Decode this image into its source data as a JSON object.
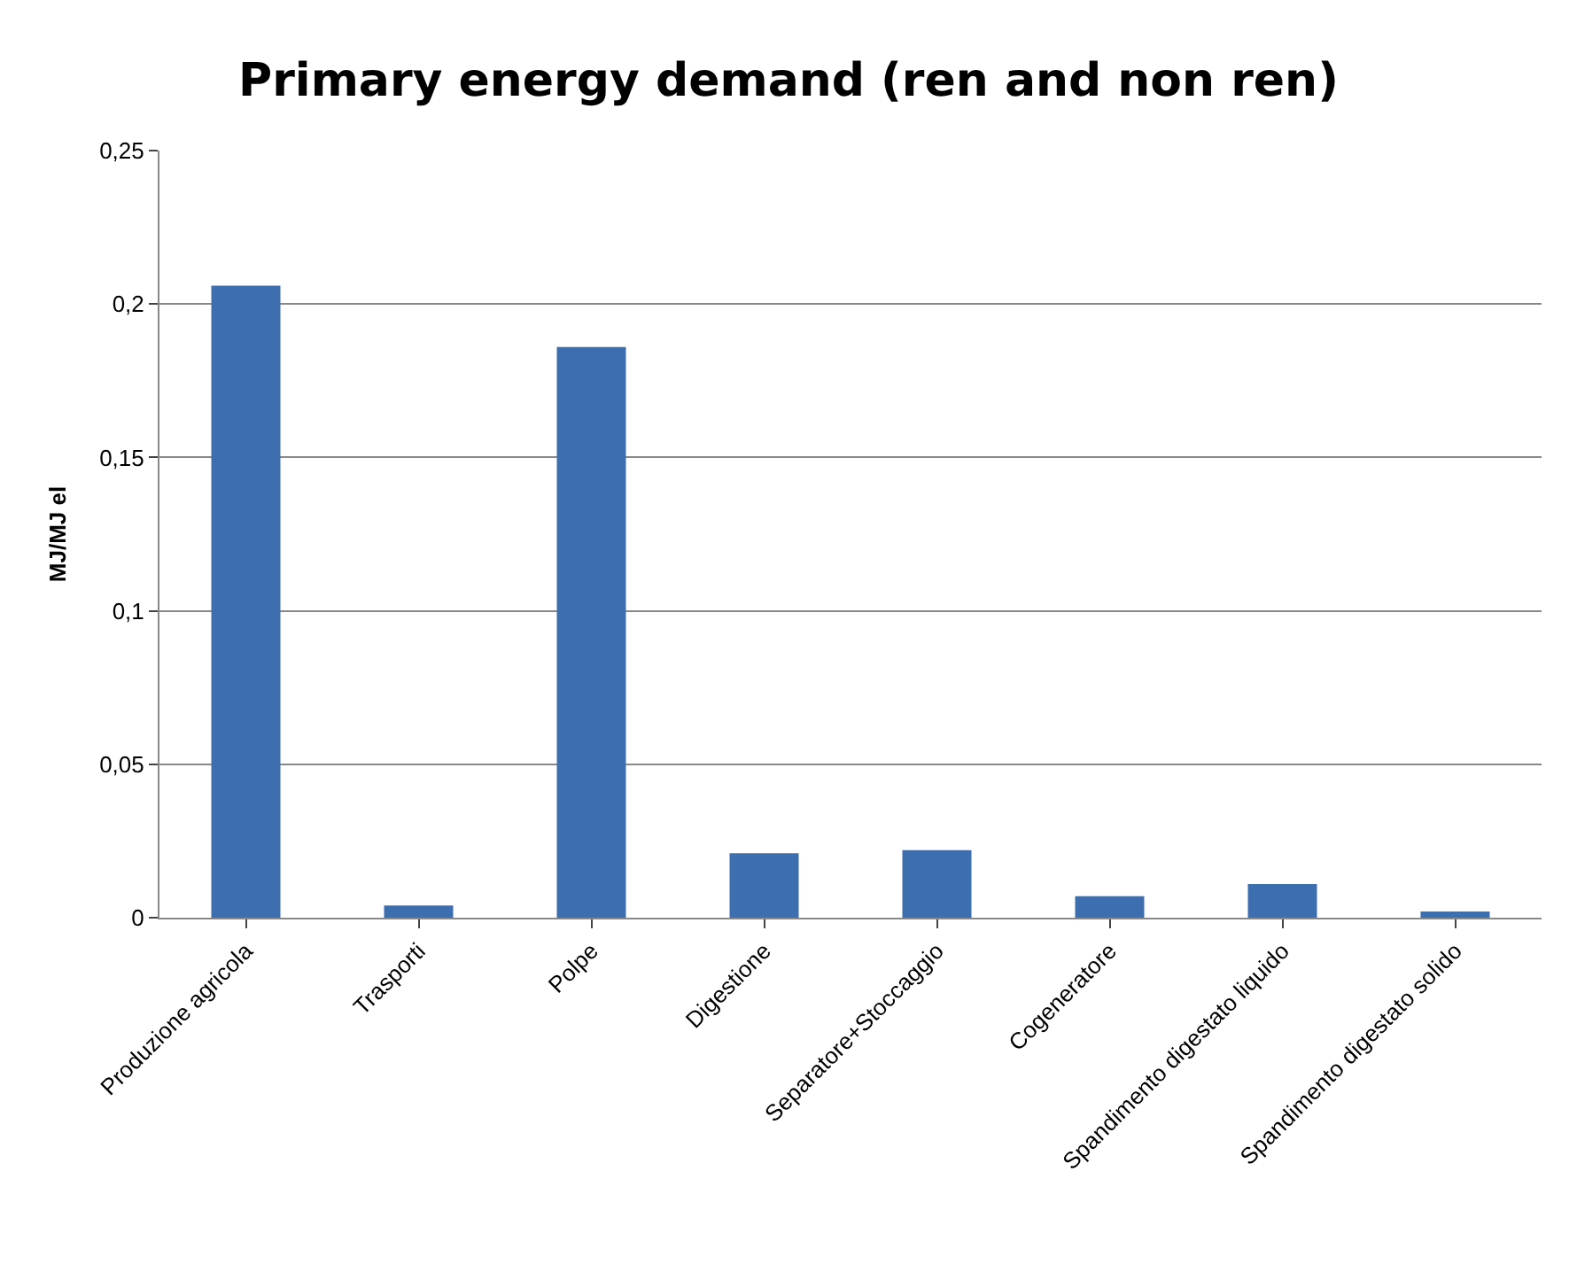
{
  "chart_data": {
    "type": "bar",
    "title": "Primary energy demand (ren and non ren)",
    "ylabel": "MJ/MJ el",
    "categories": [
      "Produzione agricola",
      "Trasporti",
      "Polpe",
      "Digestione",
      "Separatore+Stoccaggio",
      "Cogeneratore",
      "Spandimento digestato liquido",
      "Spandimento digestato solido"
    ],
    "values": [
      0.206,
      0.004,
      0.186,
      0.021,
      0.022,
      0.007,
      0.011,
      0.002
    ],
    "color": "#3d6eb0",
    "ylim": [
      0,
      0.25
    ],
    "yticks": [
      {
        "value": 0,
        "label": "0"
      },
      {
        "value": 0.05,
        "label": "0,05"
      },
      {
        "value": 0.1,
        "label": "0,1"
      },
      {
        "value": 0.15,
        "label": "0,15"
      },
      {
        "value": 0.2,
        "label": "0,2"
      },
      {
        "value": 0.25,
        "label": "0,25"
      }
    ],
    "grid": "y"
  }
}
